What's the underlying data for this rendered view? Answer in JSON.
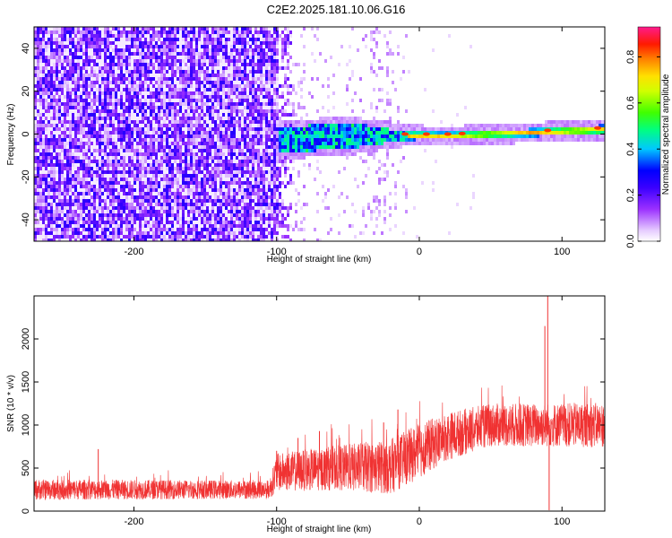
{
  "title": "C2E2.2025.181.10.06.G16",
  "chart_data": [
    {
      "type": "heatmap",
      "xlabel": "Height of straight line (km)",
      "ylabel": "Frequency (Hz)",
      "xlim": [
        -270,
        130
      ],
      "ylim": [
        -50,
        50
      ],
      "xticks": [
        -200,
        -100,
        0,
        100
      ],
      "yticks": [
        -40,
        -20,
        0,
        20,
        40
      ],
      "colorbar": {
        "label": "Normalized spectral amplitude",
        "range": [
          0,
          0.93
        ],
        "ticks": [
          0,
          0.2,
          0.4,
          0.6,
          0.8
        ],
        "colormap": [
          "#ffffff",
          "#d9b3ff",
          "#9b30ff",
          "#5a00e6",
          "#0000ff",
          "#00c8ff",
          "#00ff64",
          "#b4ff00",
          "#ffff00",
          "#ff8c00",
          "#ff2000",
          "#ff1a8c"
        ]
      },
      "regions": [
        {
          "x_range": [
            -270,
            -100
          ],
          "description_level": 0.1,
          "pattern": "broadband noise"
        },
        {
          "x_range": [
            -100,
            -10
          ],
          "description_level": 0.15,
          "pattern": "sparse noise with signal band"
        },
        {
          "x_range": [
            -10,
            130
          ],
          "description_level": 0.02,
          "pattern": "narrow carrier near 0 Hz"
        }
      ],
      "signal_band": {
        "center_hz": [
          [
            -100,
            -2
          ],
          [
            -50,
            0
          ],
          [
            -10,
            0
          ],
          [
            20,
            0
          ],
          [
            60,
            1
          ],
          [
            100,
            2
          ],
          [
            130,
            3
          ]
        ],
        "half_width_hz": [
          [
            -100,
            6
          ],
          [
            -50,
            6
          ],
          [
            -10,
            2
          ],
          [
            20,
            1.5
          ],
          [
            130,
            2
          ]
        ],
        "peak_spots_x": [
          -10,
          5,
          20,
          30,
          90,
          125
        ]
      }
    },
    {
      "type": "line",
      "xlabel": "Height of straight line (km)",
      "ylabel": "SNR (10 * v/v)",
      "xlim": [
        -270,
        130
      ],
      "ylim": [
        0,
        2500
      ],
      "xticks": [
        -200,
        -100,
        0,
        100
      ],
      "yticks": [
        0,
        500,
        1000,
        1500,
        2000
      ],
      "color": "#f03232",
      "envelope": [
        {
          "x": -270,
          "mean": 250,
          "spread": 120
        },
        {
          "x": -150,
          "mean": 250,
          "spread": 110
        },
        {
          "x": -105,
          "mean": 250,
          "spread": 110
        },
        {
          "x": -100,
          "mean": 450,
          "spread": 220
        },
        {
          "x": -60,
          "mean": 500,
          "spread": 260
        },
        {
          "x": -20,
          "mean": 520,
          "spread": 320
        },
        {
          "x": 0,
          "mean": 700,
          "spread": 320
        },
        {
          "x": 20,
          "mean": 870,
          "spread": 280
        },
        {
          "x": 50,
          "mean": 1000,
          "spread": 250
        },
        {
          "x": 130,
          "mean": 1000,
          "spread": 260
        }
      ],
      "spikes": [
        {
          "x": -225,
          "y": 720
        },
        {
          "x": -100,
          "y": 700
        },
        {
          "x": -85,
          "y": 850
        },
        {
          "x": -70,
          "y": 930
        },
        {
          "x": -25,
          "y": 1030
        },
        {
          "x": -15,
          "y": 1180
        },
        {
          "x": 90,
          "y": 2500
        },
        {
          "x": 91,
          "y": 10
        },
        {
          "x": 88,
          "y": 2150
        }
      ]
    }
  ]
}
